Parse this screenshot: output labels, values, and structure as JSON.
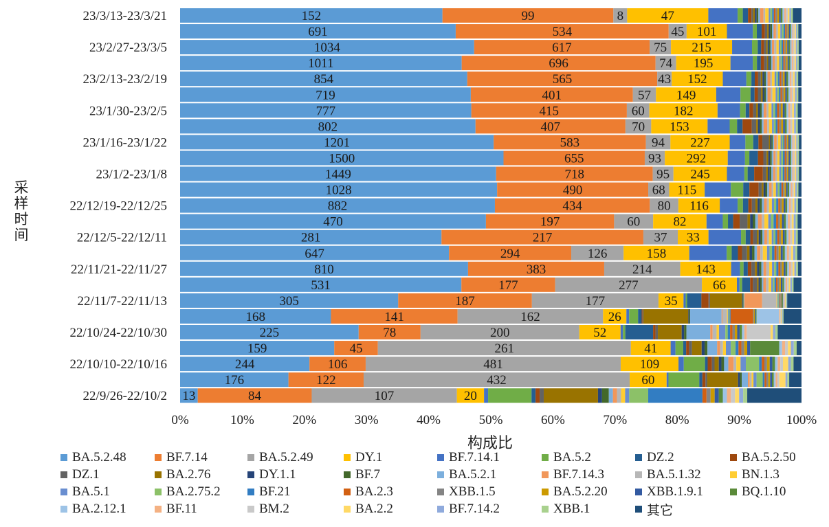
{
  "chart_data": {
    "type": "bar",
    "orientation": "horizontal",
    "stacked": "percent",
    "xlabel": "构成比",
    "ylabel": "采样时间",
    "xlim": [
      0,
      100
    ],
    "x_ticks": [
      "0%",
      "10%",
      "20%",
      "30%",
      "40%",
      "50%",
      "60%",
      "70%",
      "80%",
      "90%",
      "100%"
    ],
    "grid": false,
    "legend_position": "bottom",
    "y_tick_labels": [
      "23/3/13-23/3/21",
      "23/2/27-23/3/5",
      "23/2/13-23/2/19",
      "23/1/30-23/2/5",
      "23/1/16-23/1/22",
      "23/1/2-23/1/8",
      "22/12/19-22/12/25",
      "22/12/5-22/12/11",
      "22/11/21-22/11/27",
      "22/11/7-22/11/13",
      "22/10/24-22/10/30",
      "22/10/10-22/10/16",
      "22/9/26-22/10/2"
    ],
    "series_names": [
      "BA.5.2.48",
      "BF.7.14",
      "BA.5.2.49",
      "DY.1",
      "BF.7.14.1",
      "BA.5.2",
      "DZ.2",
      "BA.5.2.50",
      "DZ.1",
      "BA.2.76",
      "DY.1.1",
      "BF.7",
      "BA.5.2.1",
      "BF.7.14.3",
      "BA.5.1.32",
      "BN.1.3",
      "BA.5.1",
      "BA.2.75.2",
      "BF.21",
      "BA.2.3",
      "XBB.1.5",
      "BA.5.2.20",
      "XBB.1.9.1",
      "BQ.1.10",
      "BA.2.12.1",
      "BF.11",
      "BM.2",
      "BA.2.2",
      "BF.7.14.2",
      "XBB.1",
      "其它"
    ],
    "colors": [
      "#5B9BD5",
      "#ED7D31",
      "#A5A5A5",
      "#FFC000",
      "#4472C4",
      "#70AD47",
      "#255E91",
      "#9E480E",
      "#636363",
      "#997300",
      "#264478",
      "#43682B",
      "#7CAFDD",
      "#F1975A",
      "#B7B7B7",
      "#FFCD33",
      "#698ED0",
      "#8CC168",
      "#327DC2",
      "#D26012",
      "#848484",
      "#CC9A00",
      "#335AA1",
      "#5A8A39",
      "#9DC3E6",
      "#F4B183",
      "#C9C9C9",
      "#FFD966",
      "#8FAADC",
      "#A9D18E",
      "#1F4E79"
    ],
    "rows": [
      {
        "values": [
          152,
          99,
          8,
          47,
          17,
          3,
          3,
          2,
          1,
          1,
          1,
          1,
          1,
          2,
          1,
          2,
          1,
          1,
          1,
          1,
          1,
          1,
          1,
          1,
          1,
          1,
          1,
          1,
          1,
          1,
          5
        ],
        "labels": [
          "152",
          "99",
          "8",
          "47"
        ]
      },
      {
        "values": [
          691,
          534,
          45,
          101,
          65,
          10,
          12,
          8,
          6,
          4,
          4,
          4,
          4,
          6,
          5,
          6,
          4,
          4,
          4,
          3,
          3,
          3,
          3,
          3,
          3,
          3,
          3,
          3,
          3,
          3,
          8
        ],
        "labels": [
          "691",
          "534",
          "45",
          "101"
        ]
      },
      {
        "values": [
          1034,
          617,
          75,
          215,
          70,
          20,
          12,
          10,
          8,
          5,
          5,
          5,
          5,
          8,
          8,
          8,
          5,
          5,
          5,
          5,
          5,
          5,
          5,
          5,
          5,
          5,
          5,
          5,
          5,
          5,
          10
        ],
        "labels": [
          "1034",
          "617",
          "75",
          "215"
        ]
      },
      {
        "values": [
          1011,
          696,
          74,
          195,
          80,
          15,
          14,
          12,
          10,
          5,
          5,
          5,
          5,
          8,
          8,
          8,
          5,
          5,
          5,
          5,
          5,
          5,
          5,
          5,
          5,
          5,
          5,
          5,
          5,
          5,
          10
        ],
        "labels": [
          "1011",
          "696",
          "74",
          "195"
        ]
      },
      {
        "values": [
          854,
          565,
          43,
          152,
          70,
          15,
          10,
          10,
          8,
          5,
          5,
          5,
          5,
          8,
          5,
          8,
          5,
          5,
          5,
          5,
          5,
          5,
          5,
          5,
          5,
          5,
          5,
          5,
          5,
          5,
          10
        ],
        "labels": [
          "854",
          "565",
          "43",
          "152"
        ]
      },
      {
        "values": [
          719,
          401,
          57,
          149,
          60,
          25,
          10,
          8,
          8,
          4,
          4,
          4,
          4,
          8,
          4,
          8,
          4,
          4,
          4,
          4,
          4,
          4,
          4,
          4,
          4,
          4,
          4,
          4,
          4,
          4,
          8
        ],
        "labels": [
          "719",
          "401",
          "57",
          "149"
        ]
      },
      {
        "values": [
          777,
          415,
          60,
          182,
          60,
          15,
          10,
          10,
          8,
          5,
          5,
          5,
          5,
          8,
          5,
          8,
          5,
          5,
          5,
          5,
          5,
          5,
          5,
          5,
          5,
          5,
          5,
          5,
          5,
          5,
          10
        ],
        "labels": [
          "777",
          "415",
          "60",
          "182"
        ]
      },
      {
        "values": [
          802,
          407,
          70,
          153,
          60,
          20,
          15,
          25,
          12,
          5,
          5,
          5,
          5,
          10,
          5,
          8,
          5,
          5,
          5,
          5,
          5,
          5,
          5,
          5,
          5,
          5,
          5,
          5,
          5,
          5,
          10
        ],
        "labels": [
          "802",
          "407",
          "70",
          "153"
        ]
      },
      {
        "values": [
          1201,
          583,
          94,
          227,
          60,
          30,
          20,
          15,
          25,
          5,
          5,
          5,
          5,
          10,
          5,
          10,
          5,
          5,
          5,
          5,
          5,
          5,
          5,
          5,
          5,
          5,
          5,
          5,
          5,
          5,
          10
        ],
        "labels": [
          "1201",
          "583",
          "94",
          "227"
        ]
      },
      {
        "values": [
          1500,
          655,
          93,
          292,
          80,
          20,
          40,
          25,
          15,
          8,
          8,
          8,
          8,
          10,
          8,
          10,
          8,
          8,
          8,
          6,
          6,
          6,
          6,
          6,
          6,
          6,
          6,
          6,
          6,
          6,
          12
        ],
        "labels": [
          "1500",
          "655",
          "93",
          "292"
        ]
      },
      {
        "values": [
          1449,
          718,
          95,
          245,
          80,
          15,
          30,
          40,
          15,
          8,
          8,
          8,
          8,
          10,
          8,
          10,
          8,
          8,
          8,
          6,
          6,
          6,
          6,
          6,
          6,
          6,
          6,
          6,
          6,
          6,
          12
        ],
        "labels": [
          "1449",
          "718",
          "95",
          "245"
        ]
      },
      {
        "values": [
          1028,
          490,
          68,
          115,
          85,
          40,
          20,
          30,
          10,
          6,
          6,
          6,
          6,
          8,
          6,
          8,
          6,
          6,
          6,
          5,
          5,
          5,
          5,
          5,
          5,
          5,
          5,
          5,
          5,
          5,
          10
        ],
        "labels": [
          "1028",
          "490",
          "68",
          "115"
        ]
      },
      {
        "values": [
          882,
          434,
          80,
          116,
          50,
          15,
          15,
          10,
          10,
          6,
          6,
          6,
          6,
          8,
          6,
          8,
          6,
          6,
          6,
          5,
          5,
          5,
          5,
          5,
          5,
          5,
          5,
          5,
          5,
          5,
          10
        ],
        "labels": [
          "882",
          "434",
          "80",
          "116"
        ]
      },
      {
        "values": [
          470,
          197,
          60,
          82,
          25,
          8,
          8,
          10,
          12,
          4,
          4,
          4,
          4,
          6,
          4,
          6,
          4,
          4,
          4,
          3,
          3,
          3,
          3,
          3,
          3,
          3,
          3,
          3,
          3,
          3,
          6
        ],
        "labels": [
          "470",
          "197",
          "60",
          "82"
        ]
      },
      {
        "values": [
          281,
          217,
          37,
          33,
          35,
          5,
          5,
          3,
          4,
          2,
          2,
          2,
          2,
          3,
          2,
          3,
          2,
          2,
          2,
          2,
          2,
          2,
          2,
          2,
          2,
          2,
          2,
          2,
          2,
          2,
          4
        ],
        "labels": [
          "281",
          "217",
          "37",
          "33"
        ]
      },
      {
        "values": [
          647,
          294,
          126,
          158,
          90,
          12,
          15,
          10,
          12,
          6,
          6,
          6,
          6,
          8,
          6,
          10,
          6,
          6,
          6,
          5,
          5,
          5,
          5,
          5,
          5,
          5,
          5,
          5,
          5,
          5,
          10
        ],
        "labels": [
          "647",
          "294",
          "126",
          "158"
        ]
      },
      {
        "values": [
          810,
          383,
          214,
          143,
          25,
          10,
          12,
          10,
          10,
          6,
          6,
          6,
          6,
          8,
          8,
          8,
          6,
          6,
          6,
          5,
          5,
          5,
          5,
          5,
          5,
          5,
          5,
          5,
          5,
          5,
          10
        ],
        "labels": [
          "810",
          "383",
          "214",
          "143"
        ]
      },
      {
        "values": [
          531,
          177,
          277,
          66,
          5,
          5,
          15,
          5,
          8,
          3,
          3,
          3,
          3,
          5,
          5,
          5,
          3,
          3,
          3,
          3,
          3,
          3,
          3,
          3,
          3,
          3,
          3,
          3,
          3,
          3,
          15
        ],
        "labels": [
          "531",
          "177",
          "277",
          "66"
        ]
      },
      {
        "values": [
          305,
          187,
          177,
          35,
          3,
          2,
          20,
          10,
          2,
          45,
          1,
          1,
          1,
          25,
          20,
          1,
          1,
          1,
          1,
          1,
          1,
          1,
          1,
          1,
          1,
          1,
          1,
          1,
          1,
          1,
          20
        ],
        "labels": [
          "305",
          "187",
          "177",
          "35"
        ]
      },
      {
        "values": [
          168,
          141,
          162,
          26,
          3,
          10,
          4,
          1,
          1,
          50,
          1,
          1,
          35,
          1,
          5,
          1,
          1,
          1,
          1,
          25,
          1,
          1,
          1,
          1,
          25,
          1,
          1,
          1,
          1,
          1,
          20
        ],
        "labels": [
          "168",
          "141",
          "162",
          "26"
        ]
      },
      {
        "values": [
          225,
          78,
          200,
          52,
          3,
          3,
          35,
          3,
          3,
          30,
          3,
          3,
          30,
          3,
          5,
          3,
          8,
          3,
          3,
          3,
          3,
          3,
          3,
          3,
          3,
          3,
          30,
          3,
          3,
          3,
          30
        ],
        "labels": [
          "225",
          "78",
          "200",
          "52"
        ]
      },
      {
        "values": [
          159,
          45,
          261,
          41,
          5,
          8,
          3,
          3,
          3,
          10,
          3,
          3,
          10,
          3,
          3,
          3,
          5,
          5,
          3,
          3,
          3,
          3,
          3,
          30,
          3,
          3,
          3,
          3,
          3,
          3,
          5
        ],
        "labels": [
          "159",
          "45",
          "261",
          "41"
        ]
      },
      {
        "values": [
          244,
          106,
          481,
          109,
          10,
          40,
          5,
          8,
          5,
          8,
          5,
          5,
          8,
          10,
          5,
          8,
          10,
          25,
          5,
          5,
          5,
          5,
          5,
          5,
          5,
          5,
          5,
          10,
          5,
          5,
          15
        ],
        "labels": [
          "244",
          "106",
          "481",
          "109"
        ]
      },
      {
        "values": [
          176,
          122,
          432,
          60,
          3,
          50,
          5,
          5,
          3,
          50,
          3,
          3,
          10,
          3,
          3,
          3,
          5,
          10,
          3,
          3,
          3,
          3,
          3,
          3,
          3,
          3,
          3,
          10,
          3,
          3,
          20
        ],
        "labels": [
          "176",
          "122",
          "432",
          "60"
        ]
      },
      {
        "values": [
          13,
          84,
          107,
          20,
          3,
          32,
          3,
          3,
          3,
          40,
          3,
          5,
          3,
          3,
          3,
          3,
          3,
          14,
          40,
          3,
          3,
          3,
          3,
          3,
          3,
          3,
          3,
          3,
          3,
          3,
          40
        ],
        "labels": [
          "13",
          "84",
          "107",
          "20"
        ]
      }
    ]
  }
}
